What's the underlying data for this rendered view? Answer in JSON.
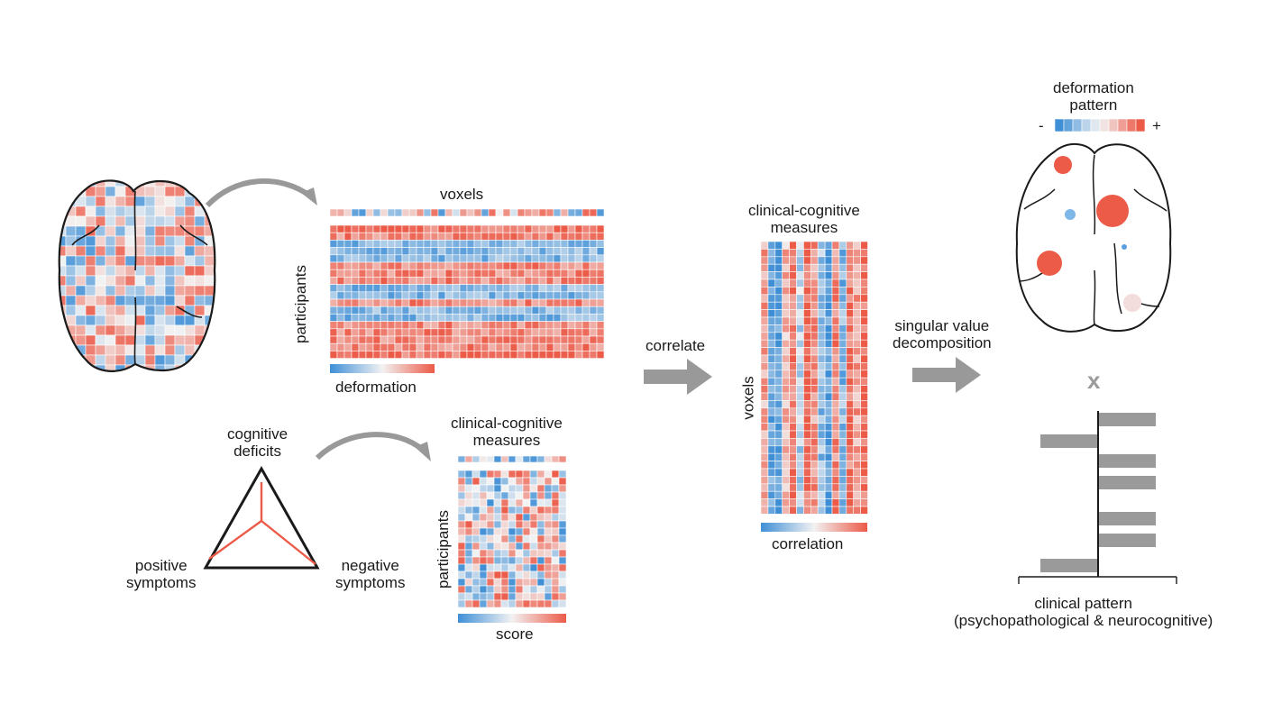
{
  "brain_input": {
    "description_icon": "brain-axial-icon"
  },
  "voxel_matrix": {
    "top_label": "voxels",
    "side_label": "participants",
    "colorbar_label": "deformation"
  },
  "triangle": {
    "top": "cognitive\ndeficits",
    "left": "positive\nsymptoms",
    "right": "negative\nsymptoms"
  },
  "clinical_matrix": {
    "top_label": "clinical-cognitive\nmeasures",
    "side_label": "participants",
    "colorbar_label": "score"
  },
  "correlate_label": "correlate",
  "correlation_matrix": {
    "top_label": "clinical-cognitive\nmeasures",
    "side_label": "voxels",
    "colorbar_label": "correlation"
  },
  "svd_label": "singular value\ndecomposition",
  "deformation_pattern": {
    "title": "deformation\npattern",
    "minus": "-",
    "plus": "+"
  },
  "times_symbol": "x",
  "clinical_pattern": {
    "label": "clinical pattern\n(psychopathological & neurocognitive)",
    "bars": [
      1,
      -1,
      1,
      1,
      1,
      1,
      -1
    ]
  },
  "colors": {
    "blue": "#3f8fd6",
    "red": "#ec5a48",
    "gray": "#999999",
    "bar_gray": "#9a9a9a"
  }
}
